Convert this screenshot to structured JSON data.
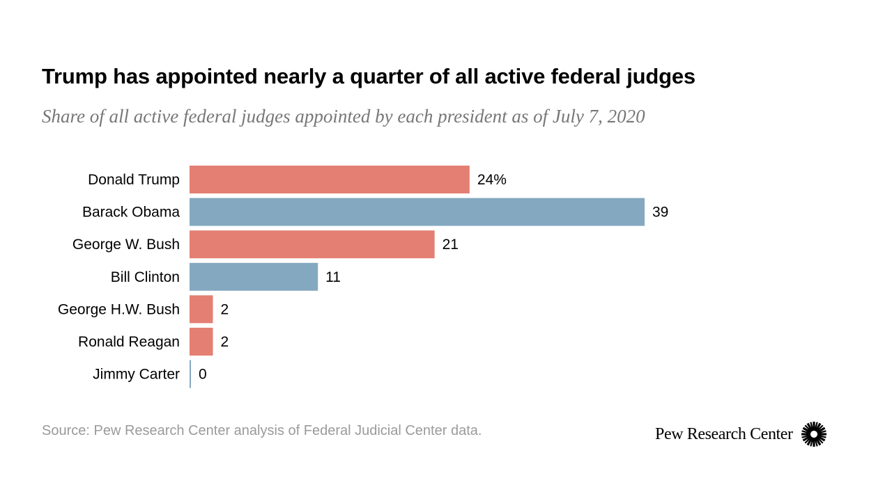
{
  "chart_data": {
    "type": "bar",
    "orientation": "horizontal",
    "title": "Trump has appointed nearly a quarter of all active federal judges",
    "subtitle": "Share of all active federal judges appointed by each president as of July 7, 2020",
    "categories": [
      "Donald Trump",
      "Barack Obama",
      "George W. Bush",
      "Bill Clinton",
      "George H.W. Bush",
      "Ronald Reagan",
      "Jimmy Carter"
    ],
    "values": [
      24,
      39,
      21,
      11,
      2,
      2,
      0
    ],
    "data_labels": [
      "24%",
      "39",
      "21",
      "11",
      "2",
      "2",
      "0"
    ],
    "party_colors": [
      "#e37f73",
      "#84a8c0",
      "#e37f73",
      "#84a8c0",
      "#e37f73",
      "#e37f73",
      "#84a8c0"
    ],
    "unit": "%",
    "xlim": [
      0,
      39
    ],
    "grid": false,
    "legend": "none",
    "xlabel": "",
    "ylabel": ""
  },
  "source": "Source: Pew Research Center analysis of Federal Judicial Center data.",
  "logo": {
    "text": "Pew Research Center",
    "icon": "sunburst-icon"
  }
}
